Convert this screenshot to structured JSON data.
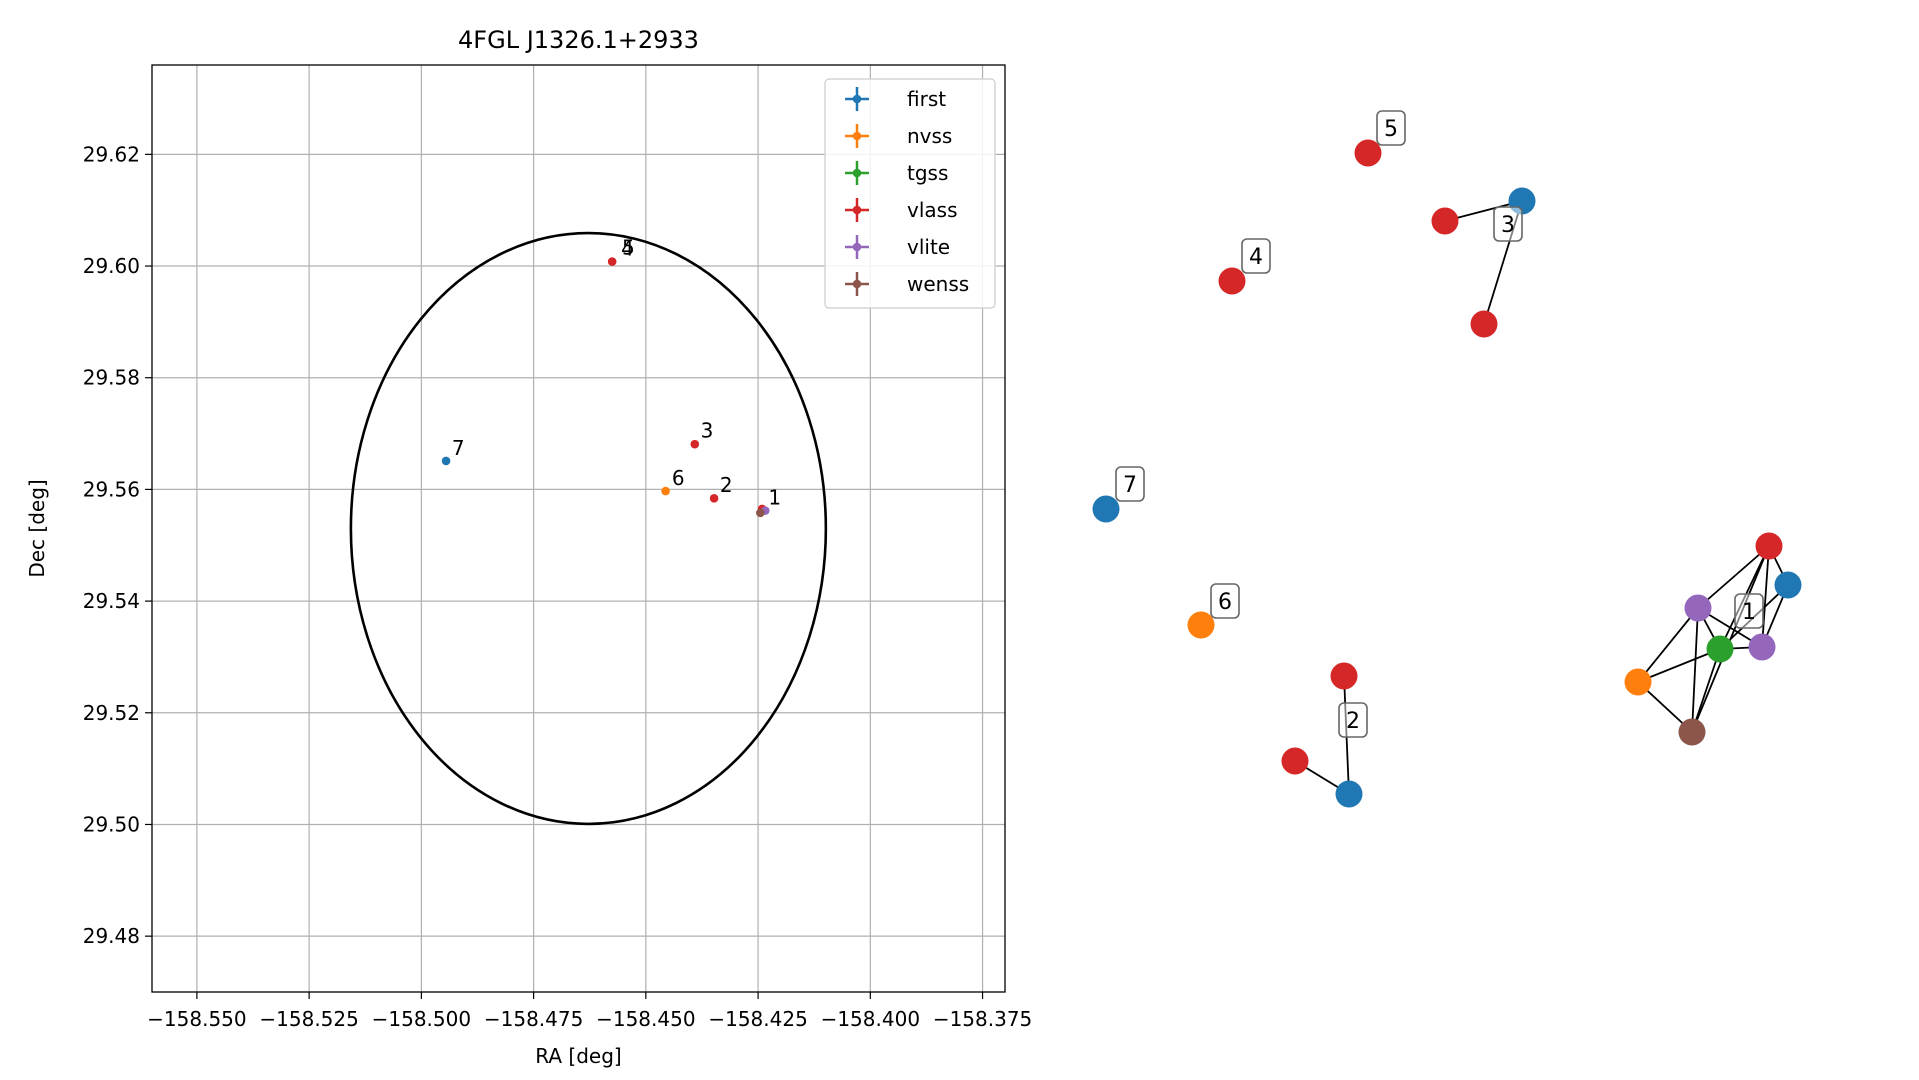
{
  "chart_data": [
    {
      "type": "scatter",
      "title": "4FGL J1326.1+2933",
      "xlabel": "RA [deg]",
      "ylabel": "Dec [deg]",
      "xlim": [
        -158.56,
        -158.37
      ],
      "ylim": [
        29.47,
        29.636
      ],
      "grid": true,
      "xticks": [
        -158.55,
        -158.525,
        -158.5,
        -158.475,
        -158.45,
        -158.425,
        -158.4,
        -158.375
      ],
      "xtick_labels": [
        "−158.550",
        "−158.525",
        "−158.500",
        "−158.475",
        "−158.450",
        "−158.425",
        "−158.400",
        "−158.375"
      ],
      "yticks": [
        29.48,
        29.5,
        29.52,
        29.54,
        29.56,
        29.58,
        29.6,
        29.62
      ],
      "ytick_labels": [
        "29.48",
        "29.50",
        "29.52",
        "29.54",
        "29.56",
        "29.58",
        "29.60",
        "29.62"
      ],
      "legend_position": "top-right",
      "circle": {
        "center_ra": -158.4628,
        "center_dec": 29.553,
        "radius_deg": 0.0529
      },
      "series": [
        {
          "name": "first",
          "color": "#1f77b4",
          "points": [
            {
              "x": -158.4945,
              "y": 29.5651
            }
          ]
        },
        {
          "name": "nvss",
          "color": "#ff7f0e",
          "points": [
            {
              "x": -158.4456,
              "y": 29.5597
            }
          ]
        },
        {
          "name": "tgss",
          "color": "#2ca02c",
          "points": []
        },
        {
          "name": "vlass",
          "color": "#d62728",
          "points": [
            {
              "x": -158.4575,
              "y": 29.6008
            },
            {
              "x": -158.4391,
              "y": 29.5681
            },
            {
              "x": -158.4348,
              "y": 29.5584
            },
            {
              "x": -158.4241,
              "y": 29.5565
            }
          ]
        },
        {
          "name": "vlite",
          "color": "#9467bd",
          "points": [
            {
              "x": -158.4234,
              "y": 29.5562
            }
          ]
        },
        {
          "name": "wenss",
          "color": "#8c564b",
          "points": [
            {
              "x": -158.4245,
              "y": 29.5558
            }
          ]
        }
      ],
      "annotations": [
        {
          "text": "1",
          "x": -158.4227,
          "y": 29.5573
        },
        {
          "text": "2",
          "x": -158.4335,
          "y": 29.5595
        },
        {
          "text": "3",
          "x": -158.4378,
          "y": 29.5693
        },
        {
          "text": "4",
          "x": -158.4555,
          "y": 29.6019
        },
        {
          "text": "5",
          "x": -158.4553,
          "y": 29.6021
        },
        {
          "text": "6",
          "x": -158.4442,
          "y": 29.5608
        },
        {
          "text": "7",
          "x": -158.4932,
          "y": 29.5662
        }
      ]
    },
    {
      "type": "network",
      "node_colors": {
        "first": "#1f77b4",
        "nvss": "#ff7f0e",
        "tgss": "#2ca02c",
        "vlass": "#d62728",
        "vlite": "#9467bd",
        "wenss": "#8c564b"
      },
      "nodes": [
        {
          "id": "n5",
          "catalog": "vlass"
        },
        {
          "id": "n3a",
          "catalog": "first"
        },
        {
          "id": "n3b",
          "catalog": "vlass"
        },
        {
          "id": "n3c",
          "catalog": "vlass"
        },
        {
          "id": "n4",
          "catalog": "vlass"
        },
        {
          "id": "n7",
          "catalog": "first"
        },
        {
          "id": "n6",
          "catalog": "nvss"
        },
        {
          "id": "n2a",
          "catalog": "vlass"
        },
        {
          "id": "n2b",
          "catalog": "vlass"
        },
        {
          "id": "n2c",
          "catalog": "first"
        },
        {
          "id": "n1a",
          "catalog": "vlass"
        },
        {
          "id": "n1b",
          "catalog": "first"
        },
        {
          "id": "n1c",
          "catalog": "vlite"
        },
        {
          "id": "n1d",
          "catalog": "vlite"
        },
        {
          "id": "n1e",
          "catalog": "tgss"
        },
        {
          "id": "n1f",
          "catalog": "nvss"
        },
        {
          "id": "n1g",
          "catalog": "wenss"
        }
      ],
      "edges": [
        [
          "n3a",
          "n3b"
        ],
        [
          "n3a",
          "n3c"
        ],
        [
          "n2a",
          "n2c"
        ],
        [
          "n2b",
          "n2c"
        ],
        [
          "n1a",
          "n1b"
        ],
        [
          "n1a",
          "n1c"
        ],
        [
          "n1a",
          "n1d"
        ],
        [
          "n1a",
          "n1e"
        ],
        [
          "n1a",
          "n1g"
        ],
        [
          "n1b",
          "n1e"
        ],
        [
          "n1b",
          "n1d"
        ],
        [
          "n1c",
          "n1d"
        ],
        [
          "n1c",
          "n1e"
        ],
        [
          "n1c",
          "n1f"
        ],
        [
          "n1c",
          "n1g"
        ],
        [
          "n1e",
          "n1f"
        ],
        [
          "n1e",
          "n1d"
        ],
        [
          "n1e",
          "n1g"
        ],
        [
          "n1f",
          "n1g"
        ]
      ],
      "groups": [
        {
          "label": "1",
          "nodes": [
            "n1a",
            "n1b",
            "n1c",
            "n1d",
            "n1e",
            "n1f",
            "n1g"
          ]
        },
        {
          "label": "2",
          "nodes": [
            "n2a",
            "n2b",
            "n2c"
          ]
        },
        {
          "label": "3",
          "nodes": [
            "n3a",
            "n3b",
            "n3c"
          ]
        },
        {
          "label": "4",
          "nodes": [
            "n4"
          ]
        },
        {
          "label": "5",
          "nodes": [
            "n5"
          ]
        },
        {
          "label": "6",
          "nodes": [
            "n6"
          ]
        },
        {
          "label": "7",
          "nodes": [
            "n7"
          ]
        }
      ]
    }
  ]
}
